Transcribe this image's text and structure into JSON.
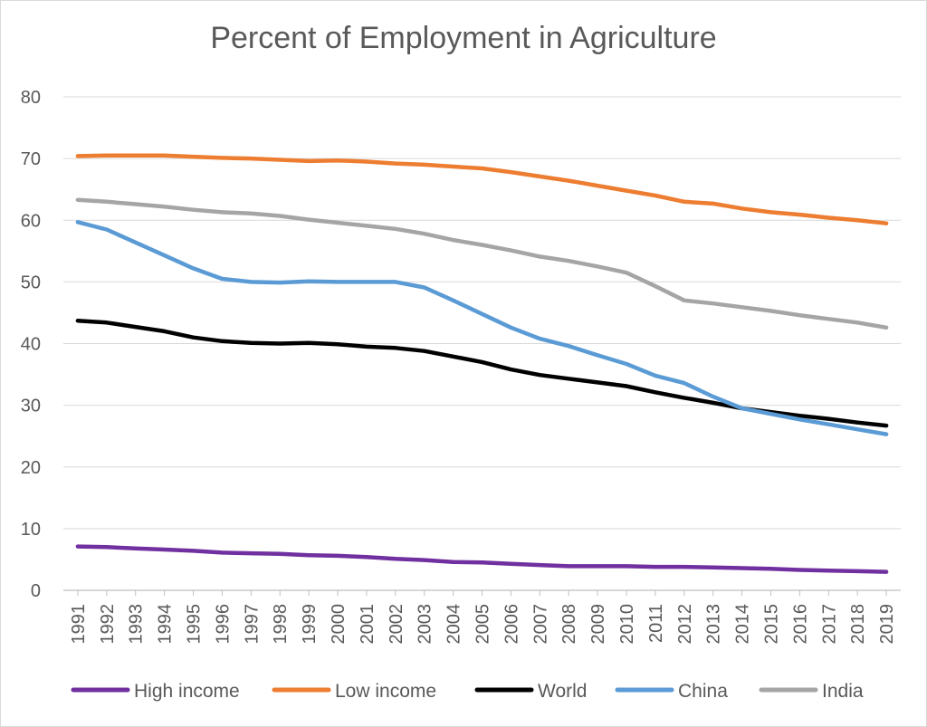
{
  "chart_data": {
    "type": "line",
    "title": "Percent of Employment in Agriculture",
    "xlabel": "",
    "ylabel": "",
    "ylim": [
      0,
      80
    ],
    "yticks": [
      "0",
      "10",
      "20",
      "30",
      "40",
      "50",
      "60",
      "70",
      "80"
    ],
    "grid": true,
    "legend_position": "bottom",
    "x": [
      "1991",
      "1992",
      "1993",
      "1994",
      "1995",
      "1996",
      "1997",
      "1998",
      "1999",
      "2000",
      "2001",
      "2002",
      "2003",
      "2004",
      "2005",
      "2006",
      "2007",
      "2008",
      "2009",
      "2010",
      "2011",
      "2012",
      "2013",
      "2014",
      "2015",
      "2016",
      "2017",
      "2018",
      "2019"
    ],
    "series": [
      {
        "name": "High income",
        "color": "#7030a0",
        "values": [
          7.1,
          7.0,
          6.8,
          6.6,
          6.4,
          6.1,
          6.0,
          5.9,
          5.7,
          5.6,
          5.4,
          5.1,
          4.9,
          4.6,
          4.5,
          4.3,
          4.1,
          3.9,
          3.9,
          3.9,
          3.8,
          3.8,
          3.7,
          3.6,
          3.5,
          3.3,
          3.2,
          3.1,
          3.0
        ]
      },
      {
        "name": "Low income",
        "color": "#ed7d31",
        "values": [
          70.4,
          70.5,
          70.5,
          70.5,
          70.3,
          70.1,
          70.0,
          69.8,
          69.6,
          69.7,
          69.5,
          69.2,
          69.0,
          68.7,
          68.4,
          67.8,
          67.1,
          66.4,
          65.6,
          64.8,
          64.0,
          63.0,
          62.7,
          61.9,
          61.3,
          60.9,
          60.4,
          60.0,
          59.5
        ]
      },
      {
        "name": "World",
        "color": "#000000",
        "values": [
          43.7,
          43.4,
          42.7,
          42.0,
          41.0,
          40.4,
          40.1,
          40.0,
          40.1,
          39.9,
          39.5,
          39.3,
          38.8,
          37.9,
          37.0,
          35.8,
          34.9,
          34.3,
          33.7,
          33.1,
          32.1,
          31.2,
          30.4,
          29.5,
          28.9,
          28.3,
          27.8,
          27.2,
          26.7
        ]
      },
      {
        "name": "China",
        "color": "#5b9bd5",
        "values": [
          59.7,
          58.5,
          56.4,
          54.3,
          52.2,
          50.5,
          50.0,
          49.9,
          50.1,
          50.0,
          50.0,
          50.0,
          49.1,
          47.0,
          44.8,
          42.6,
          40.8,
          39.6,
          38.1,
          36.7,
          34.8,
          33.6,
          31.4,
          29.5,
          28.6,
          27.7,
          26.9,
          26.1,
          25.3
        ]
      },
      {
        "name": "India",
        "color": "#a5a5a5",
        "values": [
          63.3,
          63.0,
          62.6,
          62.2,
          61.7,
          61.3,
          61.1,
          60.7,
          60.1,
          59.6,
          59.1,
          58.6,
          57.8,
          56.8,
          56.0,
          55.1,
          54.1,
          53.4,
          52.5,
          51.5,
          49.3,
          47.0,
          46.5,
          45.9,
          45.3,
          44.6,
          44.0,
          43.4,
          42.6
        ]
      }
    ]
  }
}
